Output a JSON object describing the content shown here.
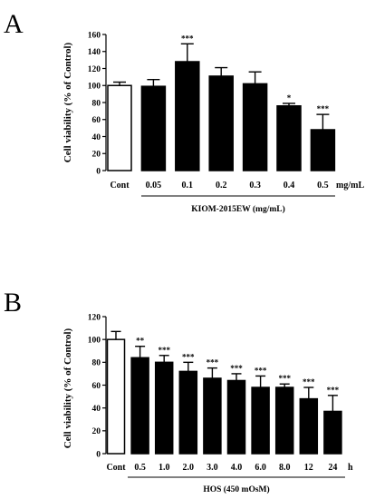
{
  "chart_data": [
    {
      "type": "bar",
      "panel_label": "A",
      "ylabel": "Cell viability (% of Control)",
      "ylim": [
        0,
        160
      ],
      "yticks": [
        0,
        20,
        40,
        60,
        80,
        100,
        120,
        140,
        160
      ],
      "categories": [
        "Cont",
        "0.05",
        "0.1",
        "0.2",
        "0.3",
        "0.4",
        "0.5"
      ],
      "values": [
        100,
        99,
        128,
        111,
        102,
        76,
        48
      ],
      "errors": [
        4,
        8,
        21,
        10,
        14,
        3,
        18
      ],
      "significance": [
        "",
        "",
        "***",
        "",
        "",
        "*",
        "***"
      ],
      "fills": [
        "#ffffff",
        "#000000",
        "#000000",
        "#000000",
        "#000000",
        "#000000",
        "#000000"
      ],
      "unit_label": "mg/mL",
      "group_label": "KIOM-2015EW (mg/mL)"
    },
    {
      "type": "bar",
      "panel_label": "B",
      "ylabel": "Cell viability (% of Control)",
      "ylim": [
        0,
        120
      ],
      "yticks": [
        0,
        20,
        40,
        60,
        80,
        100,
        120
      ],
      "categories": [
        "Cont",
        "0.5",
        "1.0",
        "2.0",
        "3.0",
        "4.0",
        "6.0",
        "8.0",
        "12",
        "24"
      ],
      "values": [
        100,
        84,
        80,
        72,
        66,
        64,
        58,
        58,
        48,
        37
      ],
      "errors": [
        7,
        10,
        6,
        8,
        9,
        6,
        10,
        3,
        10,
        14
      ],
      "significance": [
        "",
        "**",
        "***",
        "***",
        "***",
        "***",
        "***",
        "***",
        "***",
        "***"
      ],
      "fills": [
        "#ffffff",
        "#000000",
        "#000000",
        "#000000",
        "#000000",
        "#000000",
        "#000000",
        "#000000",
        "#000000",
        "#000000"
      ],
      "unit_label": "h",
      "group_label": "HOS (450 mOsM)"
    }
  ]
}
